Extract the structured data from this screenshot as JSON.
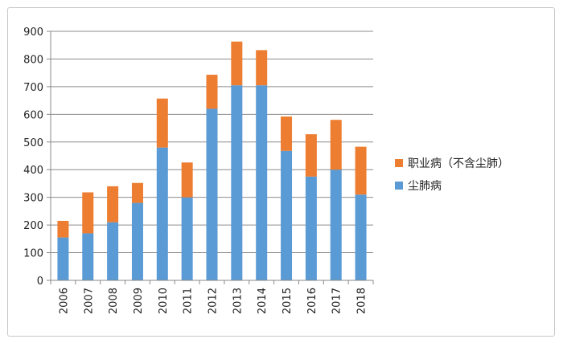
{
  "chart_data": {
    "type": "bar",
    "stacked": true,
    "categories": [
      "2006",
      "2007",
      "2008",
      "2009",
      "2010",
      "2011",
      "2012",
      "2013",
      "2014",
      "2015",
      "2016",
      "2017",
      "2018"
    ],
    "series": [
      {
        "name": "尘肺病",
        "color": "#5b9bd5",
        "values": [
          155,
          170,
          210,
          280,
          480,
          300,
          620,
          705,
          705,
          468,
          375,
          400,
          310
        ]
      },
      {
        "name": "职业病（不含尘肺）",
        "color": "#ed7d31",
        "values": [
          60,
          148,
          130,
          72,
          177,
          126,
          123,
          158,
          127,
          124,
          153,
          180,
          173
        ]
      }
    ],
    "ylim": [
      0,
      900
    ],
    "yticks": [
      "0",
      "100",
      "200",
      "300",
      "400",
      "500",
      "600",
      "700",
      "800",
      "900"
    ],
    "grid": true,
    "legend_position": "right"
  }
}
